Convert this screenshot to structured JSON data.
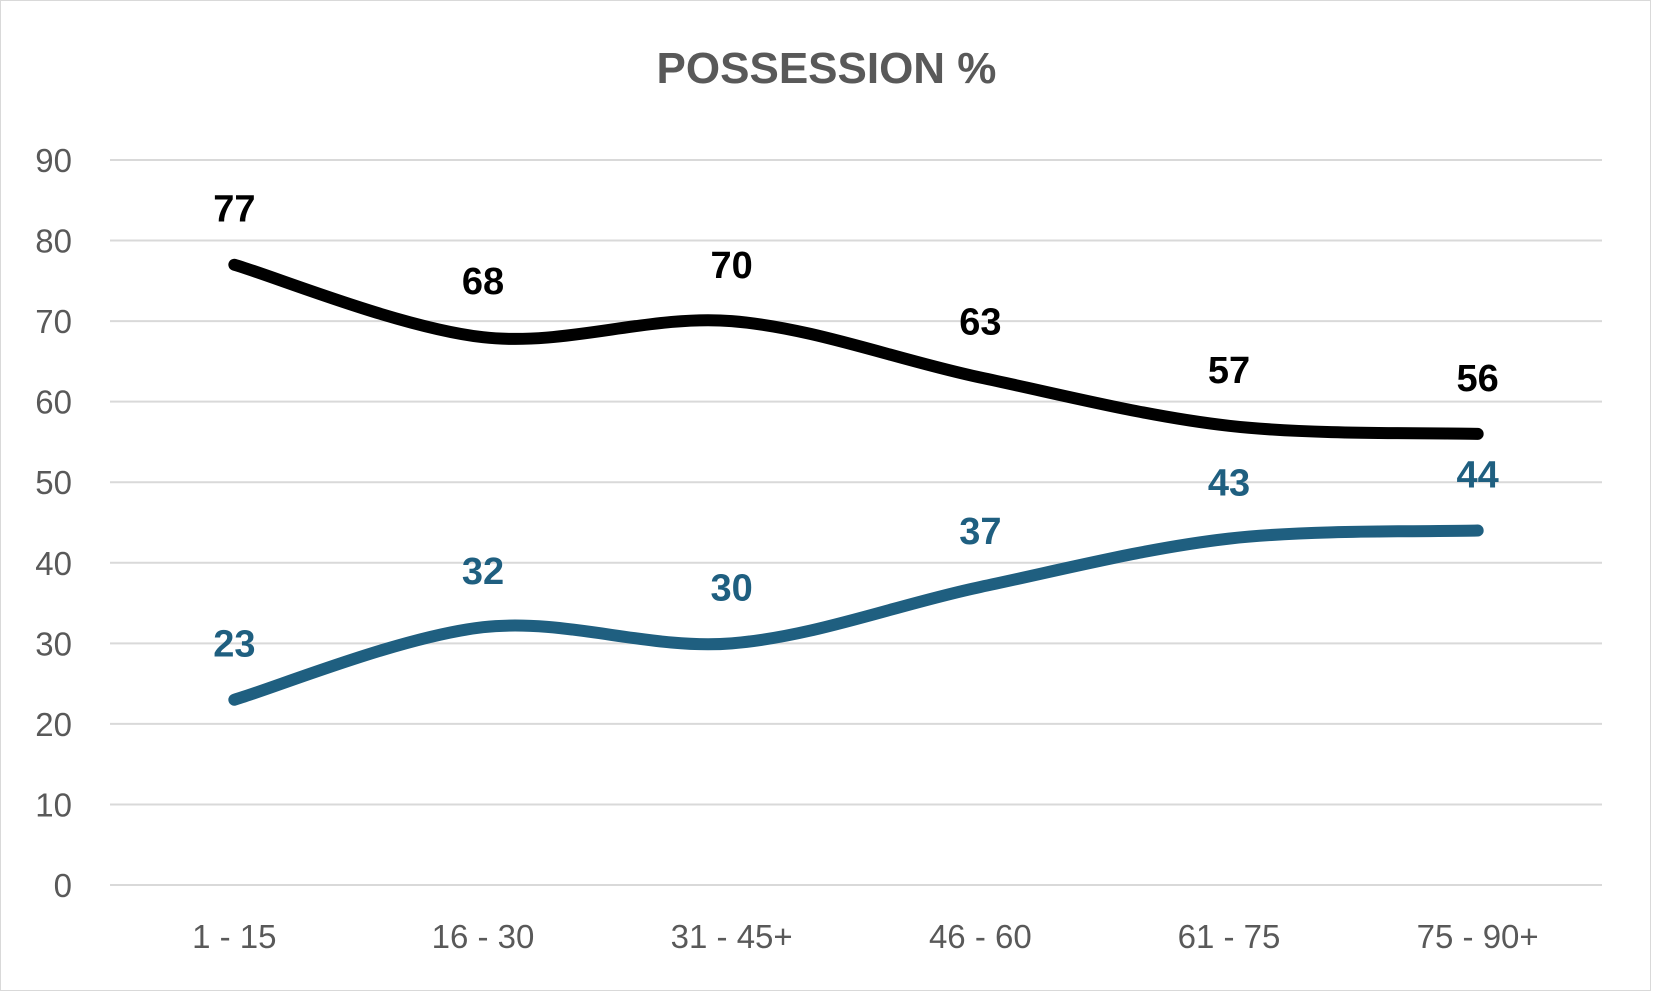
{
  "chart_data": {
    "type": "line",
    "title": "POSSESSION %",
    "categories": [
      "1 - 15",
      "16 - 30",
      "31 - 45+",
      "46 - 60",
      "61 - 75",
      "75 - 90+"
    ],
    "series": [
      {
        "color": "#000000",
        "values": [
          77,
          68,
          70,
          63,
          57,
          56
        ]
      },
      {
        "color": "#1f5f80",
        "values": [
          23,
          32,
          30,
          37,
          43,
          44
        ]
      }
    ],
    "ylim": [
      0,
      90
    ],
    "yticks": [
      "0",
      "10",
      "20",
      "30",
      "40",
      "50",
      "60",
      "70",
      "80",
      "90"
    ],
    "smooth": true,
    "grid": true,
    "legend": "none",
    "data_labels": true
  }
}
